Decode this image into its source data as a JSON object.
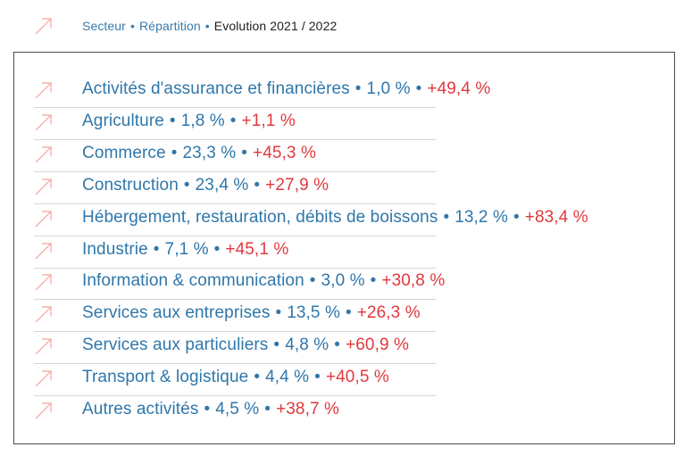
{
  "header": {
    "secteur": "Secteur",
    "repartition": "Répartition",
    "evolution": "Evolution 2021 / 2022",
    "separator": "•"
  },
  "colors": {
    "blue": "#2f77aa",
    "red": "#e0393e",
    "arrow": "#f2a39d",
    "frame": "#4a4a4a"
  },
  "icon": "arrow-up-right-icon",
  "rows": [
    {
      "sector": "Activités d'assurance et financières",
      "share": "1,0 %",
      "evolution": "+49,4 %"
    },
    {
      "sector": "Agriculture",
      "share": "1,8 %",
      "evolution": "+1,1 %"
    },
    {
      "sector": "Commerce",
      "share": "23,3 %",
      "evolution": "+45,3 %"
    },
    {
      "sector": "Construction",
      "share": "23,4 %",
      "evolution": "+27,9 %"
    },
    {
      "sector": "Hébergement, restauration, débits de boissons",
      "share": "13,2 %",
      "evolution": "+83,4 %"
    },
    {
      "sector": "Industrie",
      "share": "7,1 %",
      "evolution": "+45,1 %"
    },
    {
      "sector": "Information & communication",
      "share": "3,0 %",
      "evolution": "+30,8 %"
    },
    {
      "sector": "Services aux entreprises",
      "share": "13,5 %",
      "evolution": "+26,3 %"
    },
    {
      "sector": "Services aux particuliers",
      "share": "4,8 %",
      "evolution": "+60,9 %"
    },
    {
      "sector": "Transport & logistique",
      "share": "4,4 %",
      "evolution": "+40,5 %"
    },
    {
      "sector": "Autres activités",
      "share": "4,5 %",
      "evolution": "+38,7 %"
    }
  ]
}
